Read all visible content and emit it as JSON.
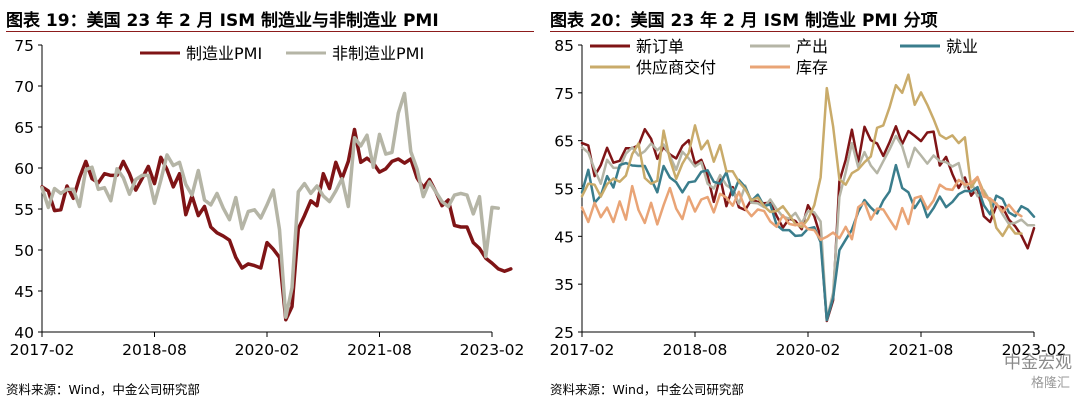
{
  "colors": {
    "dark_red": "#7f1416",
    "gray": "#b5b5a6",
    "teal": "#3a7d8c",
    "khaki": "#c9ab6a",
    "orange": "#e9a476",
    "title_rule": "#8c1b1b"
  },
  "left_panel": {
    "title": "图表 19：美国 23 年 2 月 ISM 制造业与非制造业 PMI",
    "source": "资料来源：Wind，中金公司研究部",
    "chart_data": {
      "type": "line",
      "x_ticks": [
        "2017-02",
        "2018-08",
        "2020-02",
        "2021-08",
        "2023-02"
      ],
      "y_ticks": [
        "40",
        "45",
        "50",
        "55",
        "60",
        "65",
        "70",
        "75"
      ],
      "ylim": [
        40,
        75
      ],
      "legend_position": "top",
      "x_start": "2017-02",
      "series": [
        {
          "name": "制造业PMI",
          "color": "#7f1416",
          "width": 3.5,
          "values": [
            57.7,
            57.2,
            54.8,
            54.9,
            57.8,
            56.3,
            58.8,
            60.8,
            58.7,
            58.2,
            59.3,
            59.1,
            59.1,
            60.8,
            59.3,
            57.3,
            58.7,
            60.2,
            58.1,
            61.3,
            59.8,
            57.7,
            59.3,
            54.3,
            56.6,
            54.2,
            55.3,
            52.8,
            52.1,
            51.7,
            51.2,
            49.1,
            47.8,
            48.3,
            48.1,
            47.8,
            50.9,
            50.1,
            49.1,
            41.5,
            43.1,
            52.6,
            54.2,
            56.0,
            55.4,
            59.3,
            57.5,
            60.7,
            58.7,
            60.8,
            64.7,
            60.7,
            61.2,
            60.6,
            59.5,
            59.9,
            60.8,
            61.1,
            60.6,
            61.1,
            58.8,
            57.6,
            58.6,
            57.1,
            55.4,
            56.1,
            53.0,
            52.8,
            52.8,
            50.9,
            50.2,
            49.0,
            48.4,
            47.7,
            47.4,
            47.7
          ]
        },
        {
          "name": "非制造业PMI",
          "color": "#b5b5a6",
          "width": 3.5,
          "values": [
            57.6,
            55.2,
            57.5,
            56.9,
            57.4,
            57.4,
            55.3,
            59.8,
            60.1,
            57.4,
            57.6,
            56.0,
            59.9,
            58.8,
            56.8,
            58.6,
            59.1,
            59.1,
            55.7,
            58.5,
            61.6,
            60.3,
            60.7,
            58.0,
            56.7,
            59.7,
            56.1,
            55.5,
            56.9,
            55.1,
            53.7,
            56.4,
            52.6,
            54.7,
            54.9,
            53.9,
            55.5,
            57.3,
            52.5,
            41.8,
            45.4,
            57.1,
            58.1,
            56.9,
            57.8,
            56.6,
            55.9,
            57.2,
            58.7,
            55.3,
            63.7,
            62.7,
            64.0,
            60.1,
            64.1,
            61.7,
            61.9,
            66.7,
            69.1,
            62.0,
            59.9,
            56.5,
            58.3,
            57.1,
            55.9,
            55.3,
            56.7,
            56.9,
            56.7,
            54.4,
            56.5,
            49.2,
            55.2,
            55.1
          ]
        }
      ]
    }
  },
  "right_panel": {
    "title": "图表 20：美国 23 年 2 月 ISM 制造业 PMI 分项",
    "source": "资料来源：Wind，中金公司研究部",
    "watermark": "中金宏观",
    "watermark2": "格隆汇",
    "chart_data": {
      "type": "line",
      "x_ticks": [
        "2017-02",
        "2018-08",
        "2020-02",
        "2021-08",
        "2023-02"
      ],
      "y_ticks": [
        "25",
        "35",
        "45",
        "55",
        "65",
        "75",
        "85"
      ],
      "ylim": [
        25,
        85
      ],
      "legend_position": "top",
      "x_start": "2017-02",
      "series": [
        {
          "name": "新订单",
          "color": "#7f1416",
          "width": 2.5,
          "values": [
            64.5,
            64.0,
            57.6,
            59.9,
            63.5,
            60.4,
            60.8,
            63.4,
            63.4,
            64.0,
            67.4,
            65.4,
            61.2,
            63.7,
            62.1,
            61.3,
            63.9,
            65.1,
            60.2,
            61.0,
            57.7,
            52.2,
            57.4,
            51.3,
            55.3,
            51.1,
            50.5,
            52.7,
            52.2,
            51.9,
            52.0,
            49.3,
            46.8,
            48.7,
            48.2,
            46.5,
            51.5,
            49.2,
            44.9,
            27.3,
            31.6,
            56.5,
            61.0,
            67.3,
            60.4,
            67.9,
            65.1,
            64.4,
            61.8,
            64.7,
            68.0,
            64.3,
            67.0,
            66.0,
            64.9,
            66.7,
            66.9,
            59.8,
            61.6,
            58.0,
            55.1,
            57.3,
            53.5,
            55.1,
            49.2,
            48.0,
            51.3,
            51.1,
            48.5,
            47.1,
            45.2,
            42.5,
            46.7
          ]
        },
        {
          "name": "产出",
          "color": "#b5b5a6",
          "width": 2.5,
          "values": [
            63.6,
            62.5,
            59.0,
            56.0,
            61.0,
            59.3,
            59.3,
            62.3,
            63.6,
            61.9,
            62.8,
            64.4,
            63.0,
            64.2,
            61.8,
            58.9,
            62.7,
            61.3,
            59.6,
            60.5,
            56.0,
            55.0,
            57.8,
            55.7,
            54.8,
            51.8,
            55.6,
            52.0,
            51.9,
            51.1,
            52.7,
            50.7,
            49.1,
            48.7,
            49.9,
            47.7,
            50.3,
            50.0,
            48.1,
            27.5,
            33.2,
            53.2,
            58.4,
            64.5,
            59.5,
            62.6,
            59.8,
            58.2,
            60.7,
            63.2,
            66.0,
            63.8,
            59.5,
            63.5,
            61.9,
            60.2,
            61.9,
            60.7,
            60.5,
            59.6,
            60.3,
            55.2,
            56.4,
            53.4,
            54.6,
            52.3,
            51.9,
            49.6,
            47.6,
            47.8,
            48.5,
            47.3,
            47.3
          ]
        },
        {
          "name": "就业",
          "color": "#3a7d8c",
          "width": 2.5,
          "values": [
            54.2,
            58.9,
            52.0,
            53.5,
            57.6,
            55.2,
            59.9,
            60.3,
            59.8,
            59.7,
            59.7,
            57.0,
            54.2,
            59.7,
            57.3,
            56.3,
            54.2,
            56.3,
            56.5,
            58.5,
            58.8,
            56.4,
            56.0,
            58.4,
            53.6,
            56.8,
            55.3,
            52.4,
            53.7,
            51.3,
            51.7,
            47.4,
            46.3,
            46.3,
            45.1,
            45.2,
            46.6,
            46.9,
            43.8,
            27.5,
            32.1,
            42.1,
            44.3,
            46.4,
            50.1,
            52.6,
            51.0,
            49.8,
            52.5,
            54.4,
            59.9,
            55.1,
            54.2,
            50.9,
            52.9,
            49.0,
            50.9,
            53.3,
            51.1,
            52.2,
            53.8,
            54.5,
            54.4,
            55.3,
            51.5,
            49.6,
            53.5,
            52.8,
            50.0,
            49.2,
            51.3,
            50.6,
            49.1
          ]
        },
        {
          "name": "供应商交付",
          "color": "#c9ab6a",
          "width": 2.5,
          "values": [
            53.4,
            56.0,
            55.8,
            53.3,
            55.9,
            57.1,
            56.4,
            57.7,
            62.2,
            64.4,
            57.2,
            56.0,
            56.6,
            67.1,
            61.1,
            57.0,
            60.2,
            62.4,
            68.2,
            63.2,
            65.0,
            60.6,
            64.1,
            58.6,
            58.6,
            56.4,
            54.9,
            52.5,
            53.1,
            51.3,
            50.1,
            50.3,
            51.3,
            49.5,
            47.6,
            46.9,
            48.6,
            51.5,
            57.3,
            76.0,
            68.0,
            56.9,
            55.8,
            58.2,
            59.0,
            60.5,
            61.7,
            67.7,
            68.2,
            72.0,
            76.6,
            75.0,
            78.8,
            72.5,
            75.1,
            72.5,
            69.5,
            66.2,
            65.4,
            66.1,
            64.5,
            65.7,
            55.2,
            57.3,
            54.2,
            52.3,
            46.8,
            45.1,
            47.3,
            45.6,
            45.6
          ]
        },
        {
          "name": "库存",
          "color": "#e9a476",
          "width": 2.5,
          "values": [
            51.0,
            48.0,
            52.0,
            49.0,
            51.0,
            48.0,
            52.3,
            48.5,
            55.5,
            50.5,
            47.8,
            52.0,
            47.5,
            51.5,
            55.1,
            50.8,
            48.6,
            53.3,
            50.2,
            52.7,
            53.2,
            50.0,
            53.9,
            53.1,
            51.4,
            54.3,
            50.8,
            49.2,
            50.6,
            50.3,
            48.1,
            47.0,
            49.4,
            47.6,
            47.3,
            47.8,
            46.5,
            46.3,
            44.3,
            44.9,
            45.8,
            44.6,
            47.0,
            44.4,
            51.1,
            52.1,
            48.5,
            50.8,
            50.6,
            48.5,
            46.5,
            50.9,
            47.6,
            53.0,
            53.4,
            50.7,
            52.5,
            55.8,
            54.9,
            54.7,
            56.8,
            55.8,
            56.1,
            57.4,
            53.3,
            52.9,
            51.8,
            50.1,
            51.6,
            50.0,
            49.2
          ]
        }
      ]
    }
  }
}
